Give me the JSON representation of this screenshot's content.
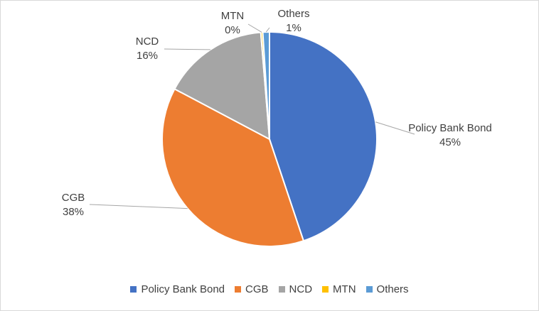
{
  "chart_data": {
    "type": "pie",
    "title": "",
    "slices": [
      {
        "label": "Policy Bank Bond",
        "value": 45,
        "display": "45%",
        "color": "#4472c4"
      },
      {
        "label": "CGB",
        "value": 38,
        "display": "38%",
        "color": "#ed7d31"
      },
      {
        "label": "NCD",
        "value": 16,
        "display": "16%",
        "color": "#a5a5a5"
      },
      {
        "label": "MTN",
        "value": 0.3,
        "display": "0%",
        "color": "#ffc000"
      },
      {
        "label": "Others",
        "value": 1,
        "display": "1%",
        "color": "#5b9bd5"
      }
    ],
    "legend_position": "bottom"
  }
}
